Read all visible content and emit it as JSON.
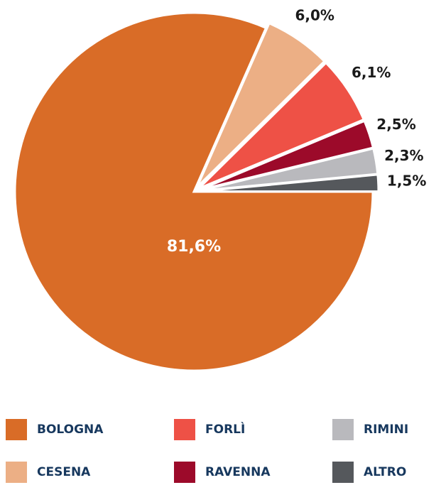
{
  "chart_data": {
    "type": "pie",
    "categories": [
      "BOLOGNA",
      "CESENA",
      "FORLÌ",
      "RAVENNA",
      "RIMINI",
      "ALTRO"
    ],
    "values": [
      81.6,
      6.0,
      6.1,
      2.5,
      2.3,
      1.5
    ],
    "value_labels": [
      "81,6%",
      "6,0%",
      "6,1%",
      "2,5%",
      "2,3%",
      "1,5%"
    ],
    "colors": [
      "#d96c27",
      "#ecaf85",
      "#ee5146",
      "#9c0a2a",
      "#b9b9bd",
      "#55585c"
    ]
  }
}
